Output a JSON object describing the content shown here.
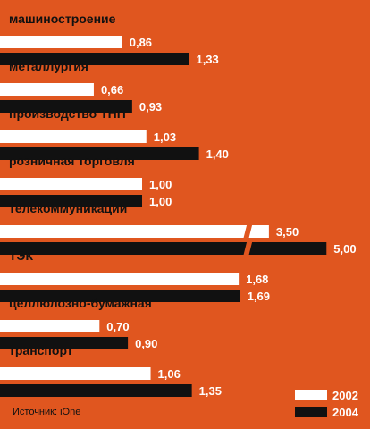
{
  "chart_data": {
    "type": "bar",
    "orientation": "horizontal",
    "categories": [
      "машиностроение",
      "металлургия",
      "производство ТНП",
      "розничная торговля",
      "телекоммуникации",
      "ТЭК",
      "целлюлозно-бумажная",
      "транспорт"
    ],
    "series": [
      {
        "name": "2002",
        "values": [
          0.86,
          0.66,
          1.03,
          1.0,
          3.5,
          1.68,
          0.7,
          1.06
        ]
      },
      {
        "name": "2004",
        "values": [
          1.33,
          0.93,
          1.4,
          1.0,
          5.0,
          1.69,
          0.9,
          1.35
        ]
      }
    ],
    "value_labels": [
      [
        "0,86",
        "0,66",
        "1,03",
        "1,00",
        "3,50",
        "1,68",
        "0,70",
        "1,06"
      ],
      [
        "1,33",
        "0,93",
        "1,40",
        "1,00",
        "5,00",
        "1,69",
        "0,90",
        "1,35"
      ]
    ],
    "axis_break": {
      "from": 1.7,
      "to": 3.3
    },
    "legend_position": "bottom-right",
    "source": "Источник: iOne"
  },
  "colors": {
    "background": "#e0561f",
    "series_2002": "#ffffff",
    "series_2004": "#111111",
    "category_text": "#111111",
    "value_text": "#ffffff"
  }
}
